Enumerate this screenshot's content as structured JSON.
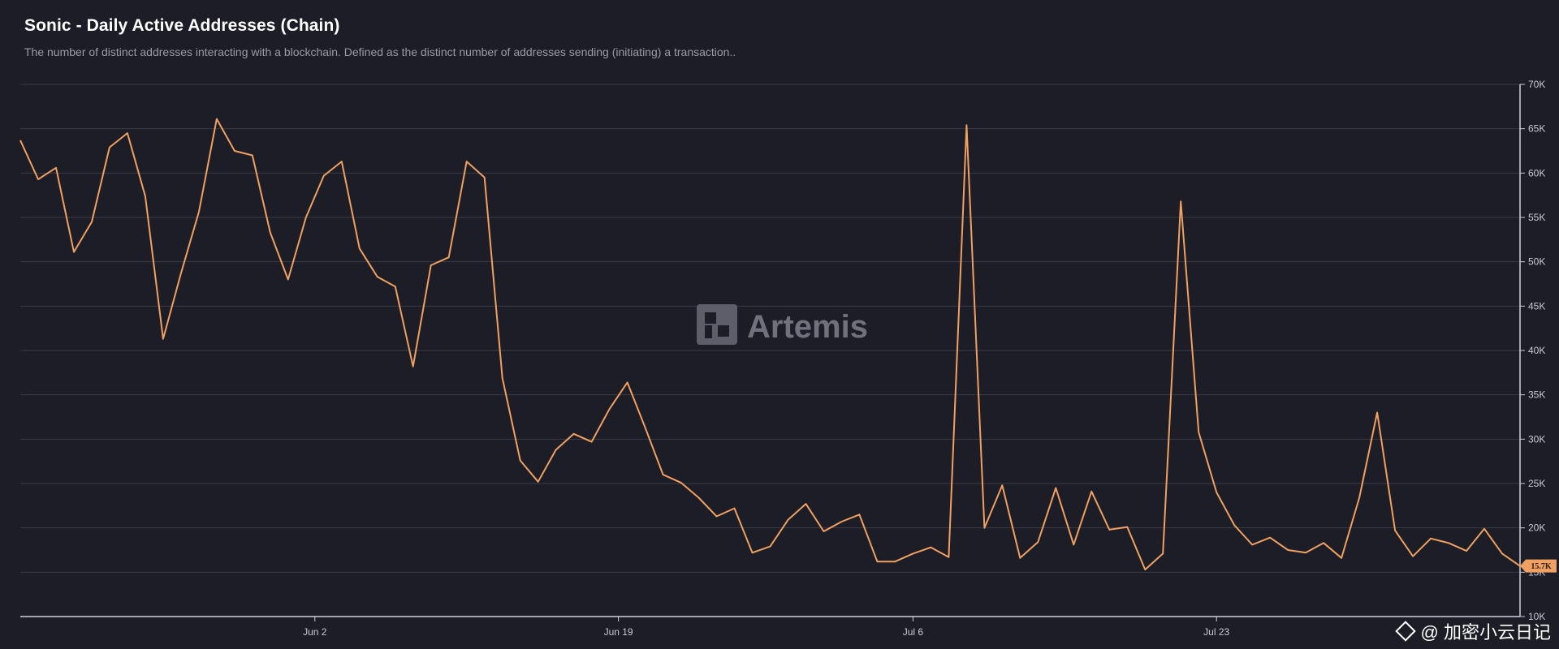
{
  "header": {
    "title": "Sonic - Daily Active Addresses (Chain)",
    "subtitle": "The number of distinct addresses interacting with a blockchain. Defined as the distinct number of addresses sending (initiating) a transaction.."
  },
  "watermark": {
    "text": "Artemis",
    "icon": "artemis-logo-icon"
  },
  "credit": {
    "icon": "binance-diamond-icon",
    "text": "@ 加密小云日记"
  },
  "colors": {
    "background": "#1c1d26",
    "line": "#f0a060",
    "grid": "#3a3b47",
    "badge": "#f0a060"
  },
  "chart_data": {
    "type": "line",
    "title": "Sonic - Daily Active Addresses (Chain)",
    "xlabel": "",
    "ylabel": "",
    "ylim": [
      10000,
      70000
    ],
    "y_ticks": [
      10000,
      15000,
      20000,
      25000,
      30000,
      35000,
      40000,
      45000,
      50000,
      55000,
      60000,
      65000,
      70000
    ],
    "y_tick_labels": [
      "10K",
      "15K",
      "20K",
      "25K",
      "30K",
      "35K",
      "40K",
      "45K",
      "50K",
      "55K",
      "60K",
      "65K",
      "70K"
    ],
    "x_tick_labels": [
      "Jun 2",
      "Jun 19",
      "Jul 6",
      "Jul 23"
    ],
    "x_tick_positions": [
      16.5,
      33.5,
      50,
      67
    ],
    "grid": true,
    "last_value_label": "15.7K",
    "series": [
      {
        "name": "",
        "values": [
          63700,
          59300,
          60600,
          51100,
          54500,
          62900,
          64500,
          57400,
          41300,
          48700,
          55600,
          66100,
          62500,
          62000,
          53300,
          48000,
          55000,
          59700,
          61300,
          51500,
          48300,
          47200,
          38200,
          49600,
          50500,
          61300,
          59500,
          36900,
          27600,
          25200,
          28800,
          30600,
          29700,
          33400,
          36400,
          31300,
          26000,
          25100,
          23400,
          21300,
          22200,
          17200,
          17900,
          20900,
          22700,
          19600,
          20700,
          21500,
          16200,
          16200,
          17100,
          17800,
          16700,
          65400,
          20000,
          24800,
          16600,
          18400,
          24500,
          18100,
          24100,
          19800,
          20100,
          15300,
          17100,
          56800,
          30800,
          24000,
          20300,
          18100,
          18900,
          17500,
          17200,
          18300,
          16600,
          23400,
          33000,
          19700,
          16800,
          18800,
          18300,
          17400,
          19900,
          17100,
          15700
        ]
      }
    ]
  }
}
